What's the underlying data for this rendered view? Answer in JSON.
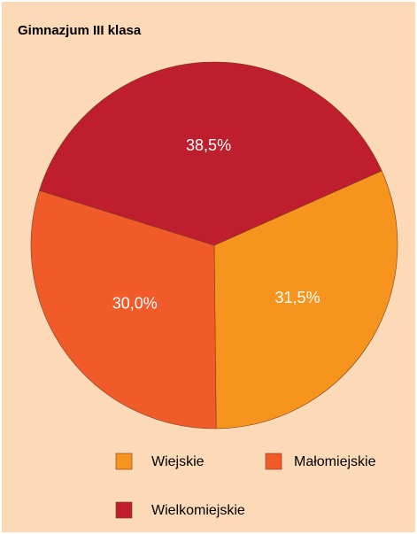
{
  "chart_data": {
    "type": "pie",
    "title": "Gimnazjum III klasa",
    "categories": [
      "Wiejskie",
      "Małomiejskie",
      "Wielkomiejskie"
    ],
    "values": [
      31.5,
      30.0,
      38.5
    ],
    "value_labels": [
      "31,5%",
      "30,0%",
      "38,5%"
    ],
    "colors": [
      "#f7941d",
      "#f15a29",
      "#be1e2d"
    ],
    "legend": "bottom"
  }
}
